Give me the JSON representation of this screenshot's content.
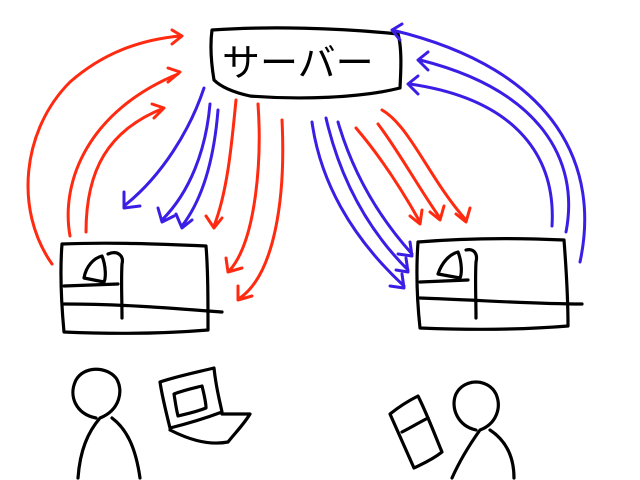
{
  "server": {
    "label": "サーバー"
  },
  "colors": {
    "request_arrow": "#ff2a10",
    "response_arrow": "#3a1ee6",
    "ink": "#000000",
    "background": "#ffffff"
  },
  "nodes": {
    "left_client": {
      "device": "laptop-icon",
      "person": "person-icon"
    },
    "right_client": {
      "device": "smartphone-icon",
      "person": "person-icon"
    }
  }
}
